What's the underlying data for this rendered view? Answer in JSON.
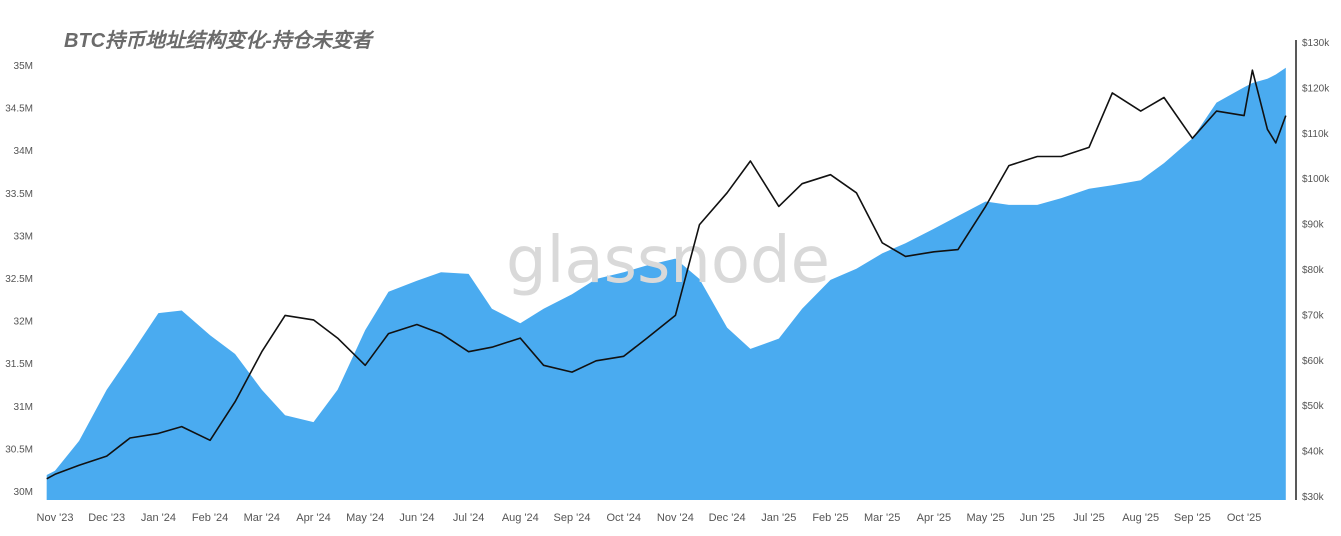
{
  "chart_data": {
    "type": "area+line",
    "title": "BTC持币地址结构变化-持仓未变者",
    "watermark": "glassnode",
    "colors": {
      "area": "#4aabf0",
      "line": "#111111"
    },
    "grid": false,
    "legend": "none",
    "x_ticks": [
      "Nov '23",
      "Dec '23",
      "Jan '24",
      "Feb '24",
      "Mar '24",
      "Apr '24",
      "May '24",
      "Jun '24",
      "Jul '24",
      "Aug '24",
      "Sep '24",
      "Oct '24",
      "Nov '24",
      "Dec '24",
      "Jan '25",
      "Feb '25",
      "Mar '25",
      "Apr '25",
      "May '25",
      "Jun '25",
      "Jul '25",
      "Aug '25",
      "Sep '25",
      "Oct '25"
    ],
    "y_left": {
      "ticks": [
        "30M",
        "30.5M",
        "31M",
        "31.5M",
        "32M",
        "32.5M",
        "33M",
        "33.5M",
        "34M",
        "34.5M",
        "35M"
      ],
      "range": [
        30,
        35
      ],
      "unit": "M"
    },
    "y_right": {
      "ticks": [
        "$30k",
        "$40k",
        "$50k",
        "$60k",
        "$70k",
        "$80k",
        "$90k",
        "$100k",
        "$110k",
        "$120k",
        "$130k"
      ],
      "range": [
        30,
        130
      ],
      "unit": "k USD"
    },
    "x": [
      "2023-10-27",
      "2023-11-01",
      "2023-11-15",
      "2023-12-01",
      "2023-12-15",
      "2024-01-01",
      "2024-01-15",
      "2024-02-01",
      "2024-02-15",
      "2024-03-01",
      "2024-03-15",
      "2024-04-01",
      "2024-04-15",
      "2024-05-01",
      "2024-05-15",
      "2024-06-01",
      "2024-06-15",
      "2024-07-01",
      "2024-07-15",
      "2024-08-01",
      "2024-08-15",
      "2024-09-01",
      "2024-09-15",
      "2024-10-01",
      "2024-10-15",
      "2024-11-01",
      "2024-11-15",
      "2024-12-01",
      "2024-12-15",
      "2025-01-01",
      "2025-01-15",
      "2025-02-01",
      "2025-02-15",
      "2025-03-01",
      "2025-03-15",
      "2025-04-01",
      "2025-04-15",
      "2025-05-01",
      "2025-05-15",
      "2025-06-01",
      "2025-06-15",
      "2025-07-01",
      "2025-07-15",
      "2025-08-01",
      "2025-08-15",
      "2025-09-01",
      "2025-09-15",
      "2025-10-01",
      "2025-10-06",
      "2025-10-15",
      "2025-10-20",
      "2025-10-26"
    ],
    "series": [
      {
        "axis": "left",
        "kind": "area",
        "values": [
          30.2,
          30.25,
          30.6,
          31.2,
          31.6,
          32.1,
          32.13,
          31.84,
          31.62,
          31.2,
          30.9,
          30.82,
          31.2,
          31.9,
          32.35,
          32.48,
          32.58,
          32.56,
          32.15,
          31.98,
          32.15,
          32.32,
          32.5,
          32.58,
          32.66,
          32.74,
          32.5,
          31.93,
          31.68,
          31.8,
          32.15,
          32.49,
          32.62,
          32.8,
          32.92,
          33.09,
          33.24,
          33.41,
          33.37,
          33.37,
          33.45,
          33.56,
          33.6,
          33.66,
          33.86,
          34.15,
          34.57,
          34.75,
          34.8,
          34.85,
          34.9,
          34.98
        ]
      },
      {
        "axis": "right",
        "kind": "line",
        "values": [
          34,
          35,
          37,
          39,
          43,
          44,
          45.5,
          42.5,
          51,
          62,
          70,
          69,
          65,
          59,
          66,
          68,
          66,
          62,
          63,
          65,
          59,
          57.5,
          60,
          61,
          65,
          70,
          90,
          97,
          104,
          94,
          99,
          101,
          97,
          86,
          83,
          84,
          84.5,
          94,
          103,
          105,
          105,
          107,
          119,
          115,
          118,
          109,
          115,
          114,
          124,
          111,
          108,
          114
        ]
      }
    ]
  }
}
